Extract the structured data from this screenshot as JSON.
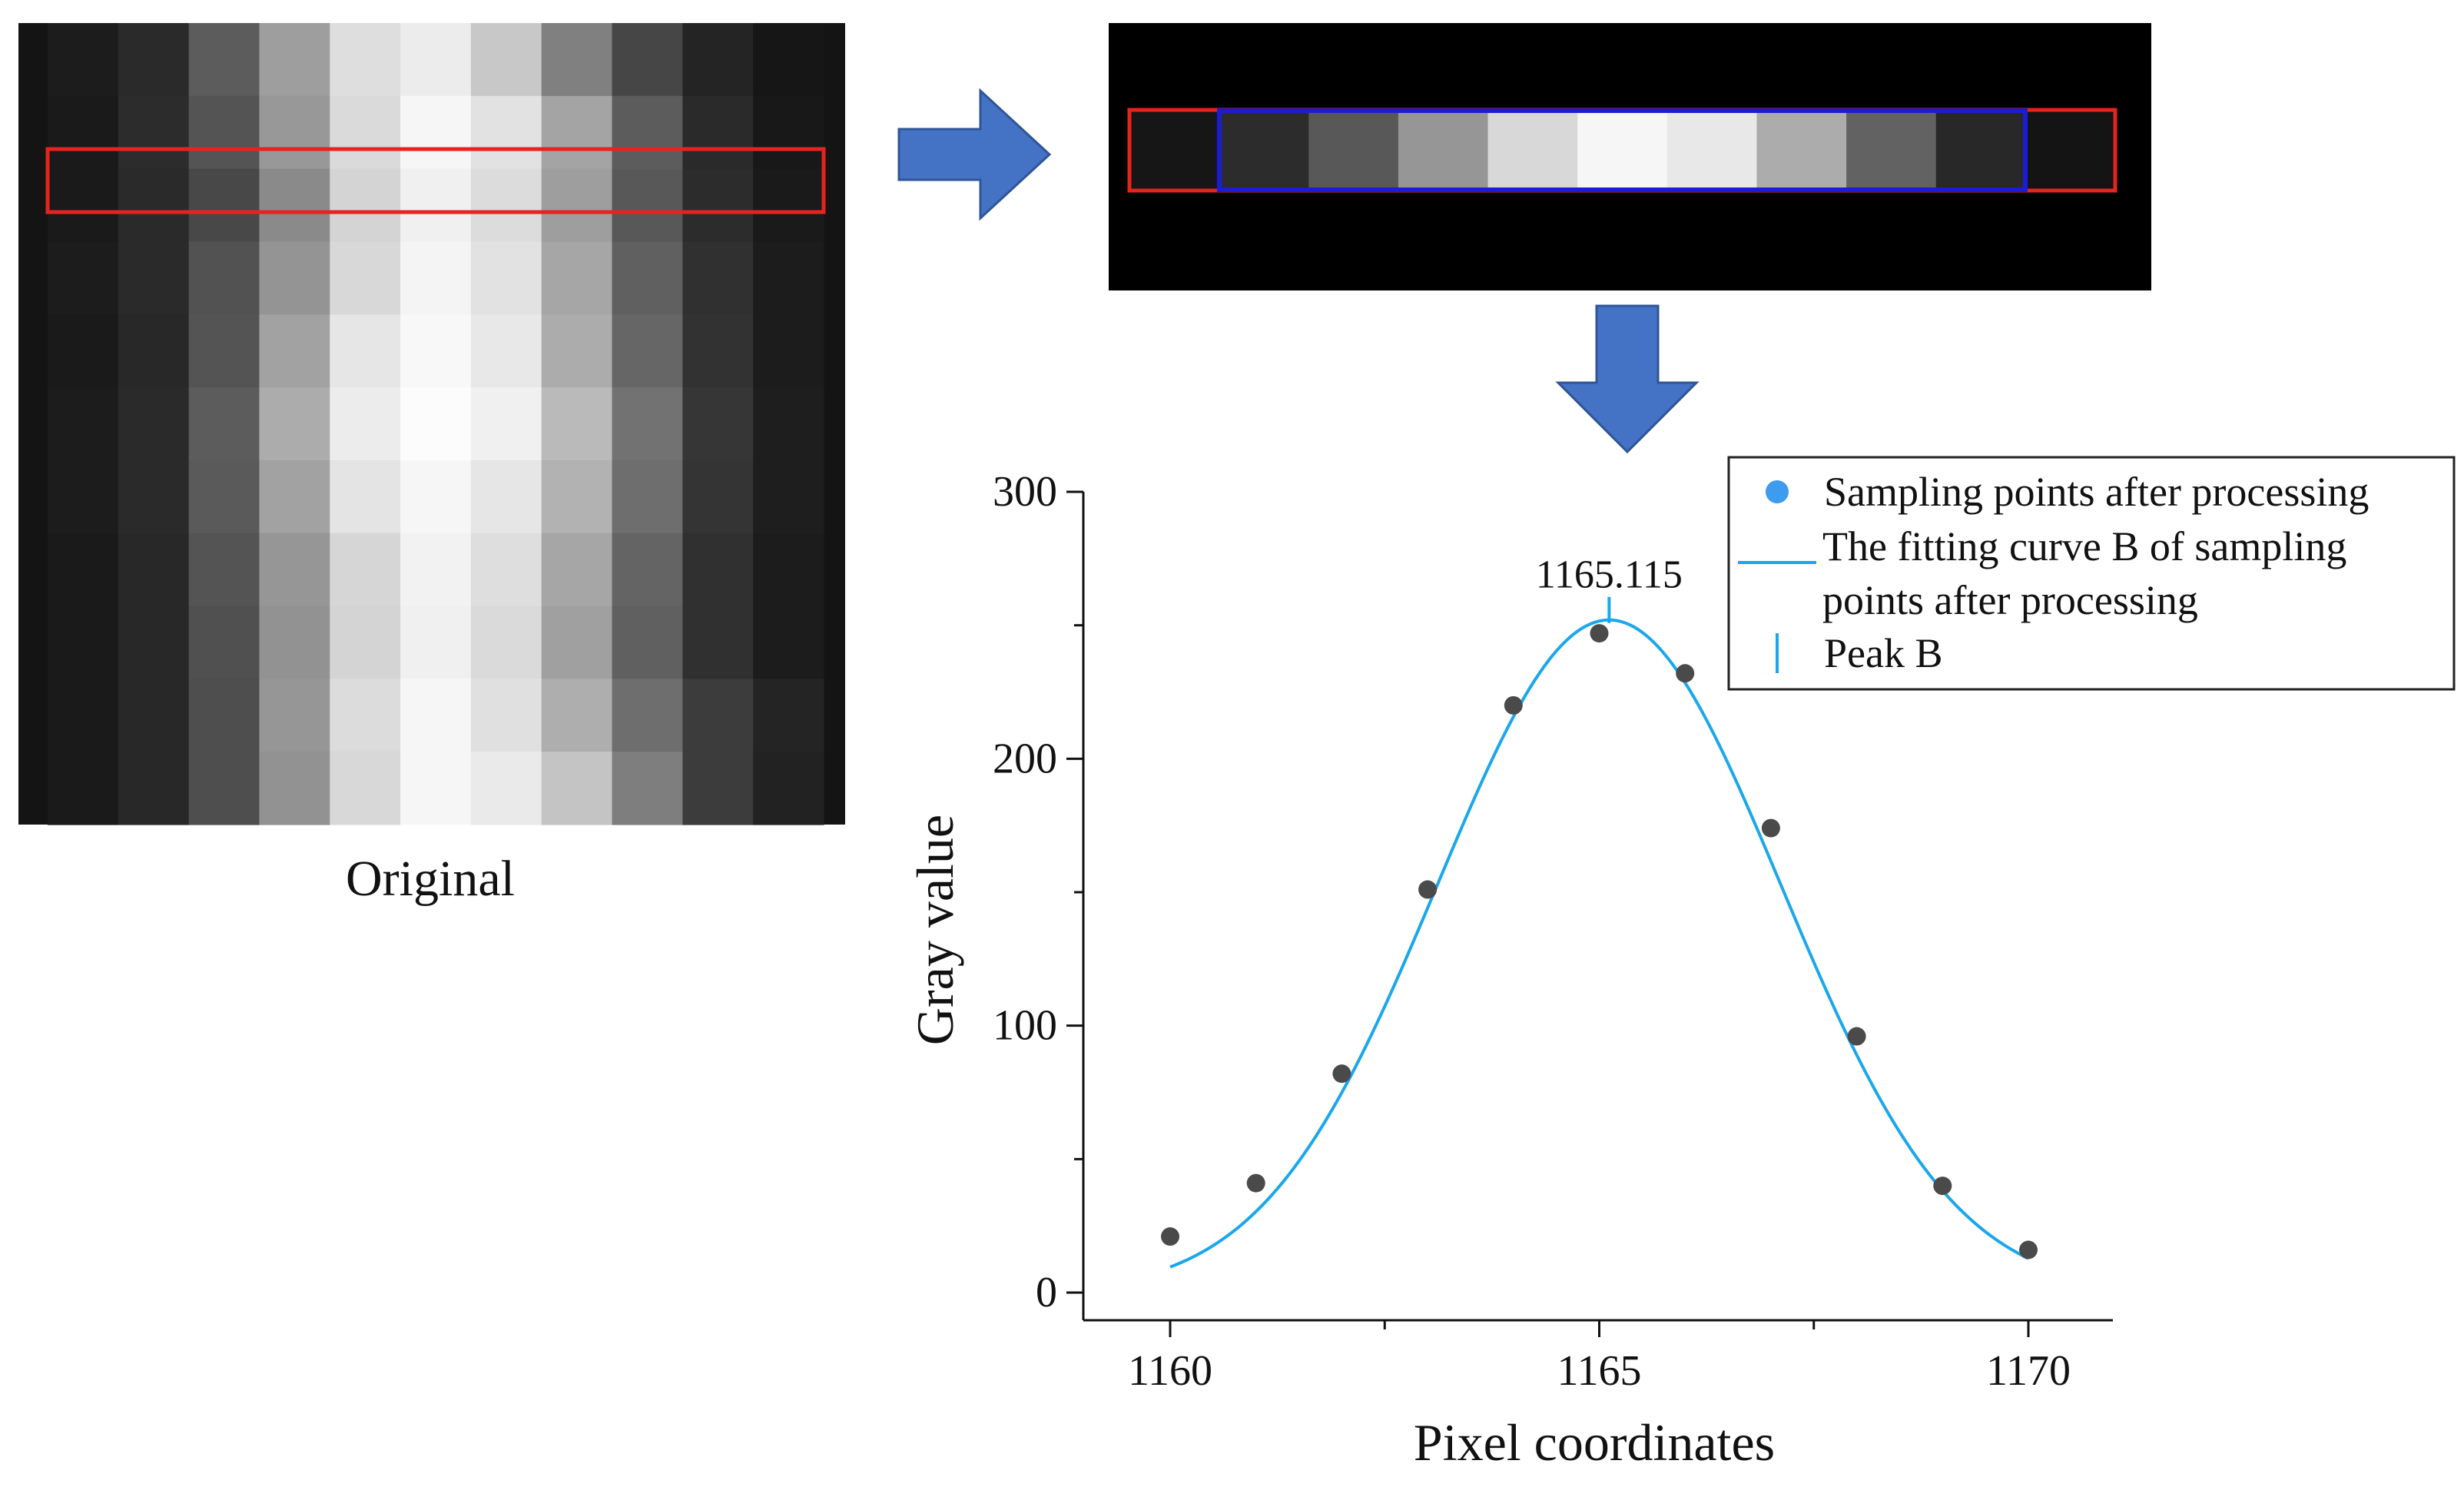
{
  "original_label": "Original",
  "original_image": {
    "column_grays": [
      26,
      42,
      90,
      150,
      215,
      242,
      222,
      160,
      98,
      52,
      32
    ],
    "row_profiles": [
      [
        28,
        42,
        92,
        158,
        222,
        236,
        200,
        128,
        70,
        36,
        22
      ],
      [
        26,
        44,
        84,
        152,
        218,
        246,
        226,
        164,
        92,
        42,
        24
      ],
      [
        26,
        42,
        72,
        138,
        212,
        240,
        220,
        158,
        88,
        44,
        26
      ],
      [
        28,
        42,
        82,
        148,
        216,
        244,
        226,
        166,
        96,
        48,
        28
      ],
      [
        26,
        40,
        84,
        162,
        230,
        248,
        232,
        172,
        102,
        50,
        28
      ],
      [
        28,
        42,
        92,
        172,
        236,
        252,
        240,
        186,
        114,
        54,
        30
      ],
      [
        28,
        42,
        90,
        162,
        228,
        246,
        230,
        178,
        110,
        52,
        30
      ],
      [
        26,
        40,
        84,
        150,
        214,
        242,
        222,
        166,
        100,
        48,
        28
      ],
      [
        26,
        40,
        80,
        146,
        212,
        240,
        218,
        160,
        96,
        48,
        28
      ],
      [
        26,
        40,
        78,
        150,
        220,
        246,
        224,
        174,
        110,
        60,
        36
      ],
      [
        26,
        40,
        78,
        146,
        216,
        246,
        234,
        196,
        126,
        60,
        34
      ]
    ]
  },
  "row_strip": {
    "cells": [
      22,
      44,
      88,
      150,
      216,
      246,
      232,
      172,
      98,
      40,
      20
    ]
  },
  "colors": {
    "sample_row_box": "#e52420",
    "processed_box": "#1c1cd6",
    "arrow_fill": "#4472c4",
    "arrow_stroke": "#2f5597",
    "curve": "#1aa7ec",
    "points": "#4a4a4a",
    "legend_marker": "#3d9bf0"
  },
  "chart_data": {
    "type": "scatter",
    "xlabel": "Pixel coordinates",
    "ylabel": "Gray value",
    "xlim": [
      1159.2,
      1171
    ],
    "ylim": [
      -10,
      300
    ],
    "xticks": [
      1160,
      1165,
      1170
    ],
    "yticks": [
      0,
      100,
      200,
      300
    ],
    "series": [
      {
        "name": "Sampling points after processing",
        "kind": "scatter",
        "x": [
          1160,
          1161,
          1162,
          1163,
          1164,
          1165,
          1166,
          1167,
          1168,
          1169,
          1170
        ],
        "y": [
          21,
          41,
          82,
          151,
          220,
          247,
          232,
          174,
          96,
          40,
          16
        ]
      },
      {
        "name": "The fitting curve B of sampling points after processing",
        "kind": "line",
        "model": "gaussian",
        "amplitude": 252,
        "center": 1165.115,
        "sigma": 2.0,
        "x_range": [
          1160,
          1170
        ]
      },
      {
        "name": "Peak B",
        "kind": "marker",
        "x": 1165.115,
        "label": "1165.115"
      }
    ],
    "legend": {
      "position": "top-right",
      "entries": [
        "Sampling points after processing",
        "The fitting curve B of sampling points after processing",
        "Peak B"
      ]
    }
  }
}
